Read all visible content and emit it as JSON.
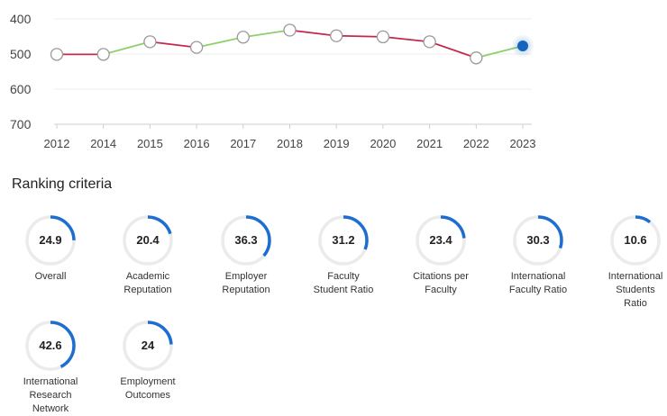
{
  "chart_data": {
    "type": "line",
    "x": [
      "2012",
      "2014",
      "2015",
      "2016",
      "2017",
      "2018",
      "2019",
      "2020",
      "2021",
      "2022",
      "2023"
    ],
    "y": [
      501,
      501,
      465,
      481,
      452,
      432,
      448,
      451,
      465,
      511,
      477
    ],
    "yticks": [
      400,
      500,
      600,
      700
    ],
    "ylim": [
      400,
      700
    ],
    "y_inverted": true,
    "grid": true,
    "colors": {
      "up": "#8cd06b",
      "down": "#c4284e",
      "highlight": "#1565c0",
      "marker_edge": "#9a9a9a"
    }
  },
  "criteria": {
    "title": "Ranking criteria",
    "accent": "#1e6ed1",
    "track": "#ebebeb",
    "items": [
      {
        "value": "24.9",
        "pct": 24.9,
        "label": "Overall"
      },
      {
        "value": "20.4",
        "pct": 20.4,
        "label": "Academic\nReputation"
      },
      {
        "value": "36.3",
        "pct": 36.3,
        "label": "Employer\nReputation"
      },
      {
        "value": "31.2",
        "pct": 31.2,
        "label": "Faculty\nStudent Ratio"
      },
      {
        "value": "23.4",
        "pct": 23.4,
        "label": "Citations per\nFaculty"
      },
      {
        "value": "30.3",
        "pct": 30.3,
        "label": "International\nFaculty Ratio"
      },
      {
        "value": "10.6",
        "pct": 10.6,
        "label": "International\nStudents\nRatio"
      },
      {
        "value": "42.6",
        "pct": 42.6,
        "label": "International\nResearch\nNetwork"
      },
      {
        "value": "24",
        "pct": 24,
        "label": "Employment\nOutcomes"
      }
    ]
  }
}
